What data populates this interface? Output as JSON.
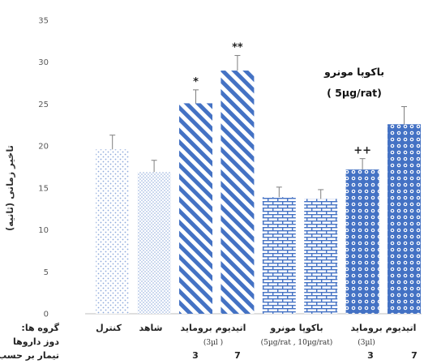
{
  "chart_data": {
    "type": "bar",
    "ylabel": "تاخیر زمانی (ثانیه)",
    "ylim": [
      0,
      35
    ],
    "yticks": [
      0,
      5,
      10,
      15,
      20,
      25,
      30,
      35
    ],
    "grid": false,
    "categories": [
      "کنترل",
      "شاهد",
      "اتیدیوم بروماید 3",
      "اتیدیوم بروماید 7",
      "باکوپا مونرو 5",
      "باکوپا مونرو 10",
      "اتیدیوم بروماید + باکوپا مونرو 3",
      "اتیدیوم بروماید + باکوپا مونرو 7"
    ],
    "values": [
      19.6,
      16.9,
      25.1,
      29.0,
      13.9,
      13.7,
      17.2,
      22.6
    ],
    "errors": [
      1.7,
      1.4,
      1.6,
      1.8,
      1.2,
      1.1,
      1.3,
      2.1
    ],
    "significance": [
      "",
      "",
      "*",
      "**",
      "",
      "",
      "++",
      ""
    ],
    "x_labels": {
      "row_group_label": ":گروه ها",
      "row_dose_label": "دوز داروها",
      "row_days_label": ":تیمار بر حسب روز",
      "control": "کنترل",
      "sham": "شاهد",
      "ethidium": "اتیدیوم بروماید",
      "ethidium_dose": "(3µl )",
      "bacopa": "باکوپا مونرو",
      "bacopa_dose": "(5µg/rat  ,  10µg/rat)",
      "ethidium2": "اتیدیوم بروماید",
      "ethidium2_dose": "(3µl)",
      "day_3a": "3",
      "day_7a": "7",
      "day_3b": "3",
      "day_7b": "7"
    },
    "inset_annotation": {
      "line1": "باکوپا مونرو",
      "line2": "( 5µg/rat)"
    },
    "colors": {
      "pattern_blue": "#4472c4",
      "light_dots": "#8eaadb",
      "axis": "#bfbfbf",
      "error_bar": "#7f7f7f"
    },
    "patterns": [
      "light-dots",
      "dense-dots",
      "diagonal-stripes",
      "diagonal-stripes",
      "brick",
      "brick",
      "circles",
      "circles"
    ]
  }
}
